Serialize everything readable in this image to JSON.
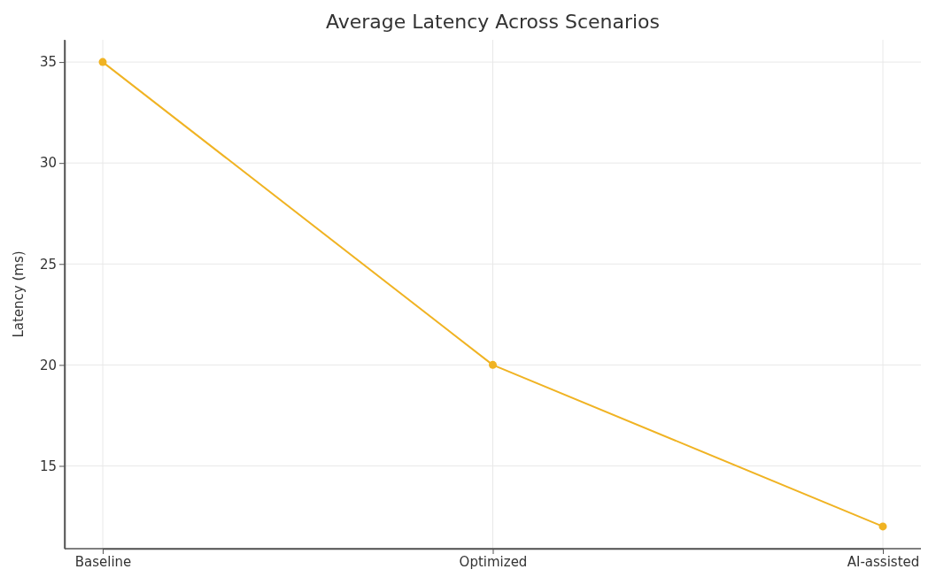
{
  "chart_data": {
    "type": "line",
    "title": "Average Latency Across Scenarios",
    "ylabel": "Latency (ms)",
    "categories": [
      "Baseline",
      "Optimized",
      "AI-assisted"
    ],
    "series": [
      {
        "color": "#f0b323",
        "values": [
          35,
          20,
          12
        ]
      }
    ],
    "ylim": [
      10.9,
      36.1
    ],
    "yticks": [
      15,
      20,
      25,
      30,
      35
    ],
    "grid": true,
    "marker": "circle",
    "line_style": "solid"
  }
}
